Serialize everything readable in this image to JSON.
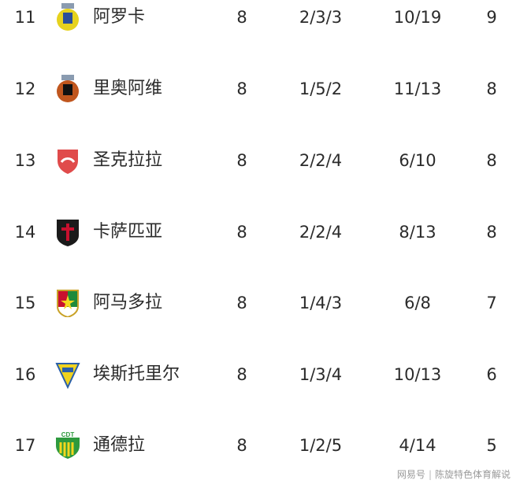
{
  "rows": [
    {
      "rank": "11",
      "team": "阿罗卡",
      "played": "8",
      "wdl": "2/3/3",
      "goals": "10/19",
      "points": "9",
      "logo": "arouca-crest-icon",
      "colors": [
        "#e6d21e",
        "#2a4f9a"
      ]
    },
    {
      "rank": "12",
      "team": "里奥阿维",
      "played": "8",
      "wdl": "1/5/2",
      "goals": "11/13",
      "points": "8",
      "logo": "rio-ave-crest-icon",
      "colors": [
        "#c0561e",
        "#111111"
      ]
    },
    {
      "rank": "13",
      "team": "圣克拉拉",
      "played": "8",
      "wdl": "2/2/4",
      "goals": "6/10",
      "points": "8",
      "logo": "santa-clara-crest-icon",
      "colors": [
        "#e04b4b",
        "#ffffff"
      ]
    },
    {
      "rank": "14",
      "team": "卡萨匹亚",
      "played": "8",
      "wdl": "2/2/4",
      "goals": "8/13",
      "points": "8",
      "logo": "casa-pia-crest-icon",
      "colors": [
        "#1a1a1a",
        "#c8102e"
      ]
    },
    {
      "rank": "15",
      "team": "阿马多拉",
      "played": "8",
      "wdl": "1/4/3",
      "goals": "6/8",
      "points": "7",
      "logo": "estrela-amadora-crest-icon",
      "colors": [
        "#c8102e",
        "#1f8a3a"
      ]
    },
    {
      "rank": "16",
      "team": "埃斯托里尔",
      "played": "8",
      "wdl": "1/3/4",
      "goals": "10/13",
      "points": "6",
      "logo": "estoril-crest-icon",
      "colors": [
        "#f0d21e",
        "#2a5fa8"
      ]
    },
    {
      "rank": "17",
      "team": "通德拉",
      "played": "8",
      "wdl": "1/2/5",
      "goals": "4/14",
      "points": "5",
      "logo": "tondela-crest-icon",
      "colors": [
        "#2e9a3e",
        "#f4d61e"
      ]
    }
  ],
  "watermark": {
    "brand": "网易号",
    "author": "陈旋特色体育解说"
  }
}
